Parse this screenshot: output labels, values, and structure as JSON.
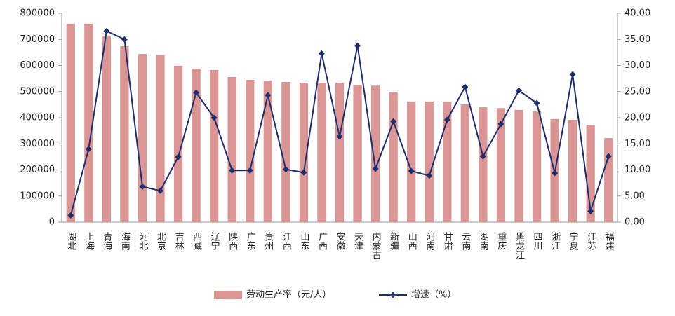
{
  "chart_data": {
    "type": "bar-line",
    "categories": [
      "湖北",
      "上海",
      "青海",
      "海南",
      "河北",
      "北京",
      "吉林",
      "西藏",
      "辽宁",
      "陕西",
      "广东",
      "贵州",
      "江西",
      "山东",
      "广西",
      "安徽",
      "天津",
      "内蒙古",
      "新疆",
      "山西",
      "河南",
      "甘肃",
      "云南",
      "湖南",
      "重庆",
      "黑龙江",
      "四川",
      "浙江",
      "宁夏",
      "江苏",
      "福建"
    ],
    "series": [
      {
        "name": "劳动生产率（元/人）",
        "type": "bar",
        "color": "#d99694",
        "values": [
          760000,
          760000,
          711000,
          674000,
          644000,
          641000,
          599000,
          588000,
          583000,
          556000,
          545000,
          542000,
          537000,
          534000,
          534000,
          534000,
          526000,
          523000,
          499000,
          462000,
          462000,
          462000,
          451000,
          440000,
          437000,
          430000,
          424000,
          395000,
          392000,
          373000,
          322000
        ]
      },
      {
        "name": "增速（%）",
        "type": "line",
        "axis": "y2",
        "color": "#1f2d6b",
        "values": [
          1.3,
          14.0,
          36.6,
          35.0,
          6.8,
          6.0,
          12.5,
          24.8,
          20.0,
          9.9,
          9.9,
          24.3,
          10.1,
          9.5,
          32.3,
          16.4,
          33.8,
          10.2,
          19.3,
          9.8,
          8.9,
          19.6,
          25.9,
          12.6,
          18.8,
          25.2,
          22.8,
          9.4,
          28.3,
          2.1,
          12.6
        ]
      }
    ],
    "ylim": [
      0,
      800000
    ],
    "yticks": [
      0,
      100000,
      200000,
      300000,
      400000,
      500000,
      600000,
      700000,
      800000
    ],
    "y2lim": [
      0,
      40
    ],
    "y2ticks": [
      {
        "value": 0,
        "label": "0.00"
      },
      {
        "value": 5,
        "label": "5.00"
      },
      {
        "value": 10,
        "label": "10.00"
      },
      {
        "value": 15,
        "label": "15.00"
      },
      {
        "value": 20,
        "label": "20.00"
      },
      {
        "value": 25,
        "label": "25.00"
      },
      {
        "value": 30,
        "label": "30.00"
      },
      {
        "value": 35,
        "label": "35.00"
      },
      {
        "value": 40,
        "label": "40.00"
      }
    ],
    "legend": "bottom"
  }
}
